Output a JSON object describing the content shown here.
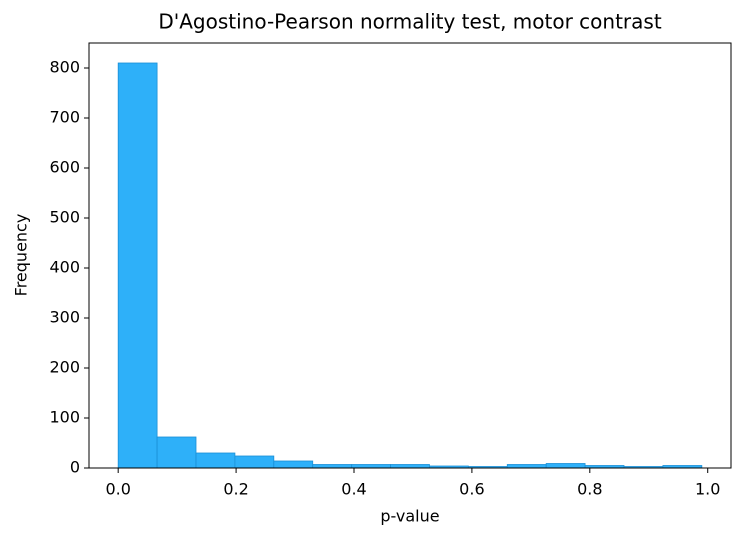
{
  "chart_data": {
    "type": "histogram",
    "title": "D'Agostino-Pearson normality test, motor contrast",
    "xlabel": "p-value",
    "ylabel": "Frequency",
    "bins": [
      0,
      0.066,
      0.132,
      0.198,
      0.264,
      0.33,
      0.396,
      0.462,
      0.528,
      0.594,
      0.66,
      0.726,
      0.792,
      0.858,
      0.924,
      0.99
    ],
    "counts": [
      810,
      62,
      30,
      24,
      14,
      7,
      7,
      7,
      4,
      3,
      7,
      9,
      5,
      3,
      5
    ],
    "color": "#2eb0f9",
    "edgecolor": "#1a8fd6",
    "xlim": [
      -0.0495,
      1.0395
    ],
    "ylim": [
      0,
      850
    ],
    "xticks": [
      {
        "value": 0,
        "label": "0.0"
      },
      0.2,
      0.4,
      0.6,
      0.8,
      {
        "value": 1,
        "label": "1.0"
      }
    ],
    "yticks": [
      0,
      100,
      200,
      300,
      400,
      500,
      600,
      700,
      800
    ]
  }
}
